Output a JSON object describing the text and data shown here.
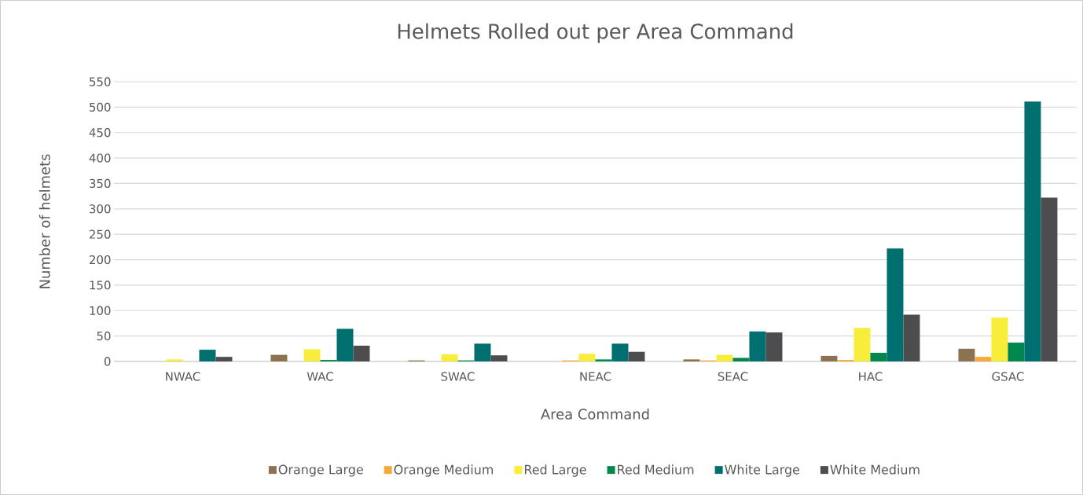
{
  "chart_data": {
    "type": "bar",
    "title": "Helmets Rolled out per Area Command",
    "xlabel": "Area Command",
    "ylabel": "Number of helmets",
    "categories": [
      "NWAC",
      "WAC",
      "SWAC",
      "NEAC",
      "SEAC",
      "HAC",
      "GSAC"
    ],
    "series": [
      {
        "name": "Orange Large",
        "color": "#8b7250",
        "values": [
          0,
          13,
          2,
          0,
          4,
          11,
          25
        ]
      },
      {
        "name": "Orange Medium",
        "color": "#f9a93b",
        "values": [
          0,
          0,
          0,
          2,
          2,
          3,
          9
        ]
      },
      {
        "name": "Red Large",
        "color": "#f8ed3a",
        "values": [
          4,
          24,
          14,
          15,
          13,
          66,
          86
        ]
      },
      {
        "name": "Red Medium",
        "color": "#00874e",
        "values": [
          0,
          3,
          2,
          4,
          7,
          17,
          37
        ]
      },
      {
        "name": "White Large",
        "color": "#006f6f",
        "values": [
          23,
          64,
          35,
          35,
          59,
          222,
          511
        ]
      },
      {
        "name": "White Medium",
        "color": "#4d4d4f",
        "values": [
          9,
          31,
          12,
          19,
          57,
          92,
          322
        ]
      }
    ],
    "ylim": [
      0,
      550
    ],
    "yticks": [
      0,
      50,
      100,
      150,
      200,
      250,
      300,
      350,
      400,
      450,
      500,
      550
    ],
    "grid": "y",
    "legend": "bottom"
  }
}
